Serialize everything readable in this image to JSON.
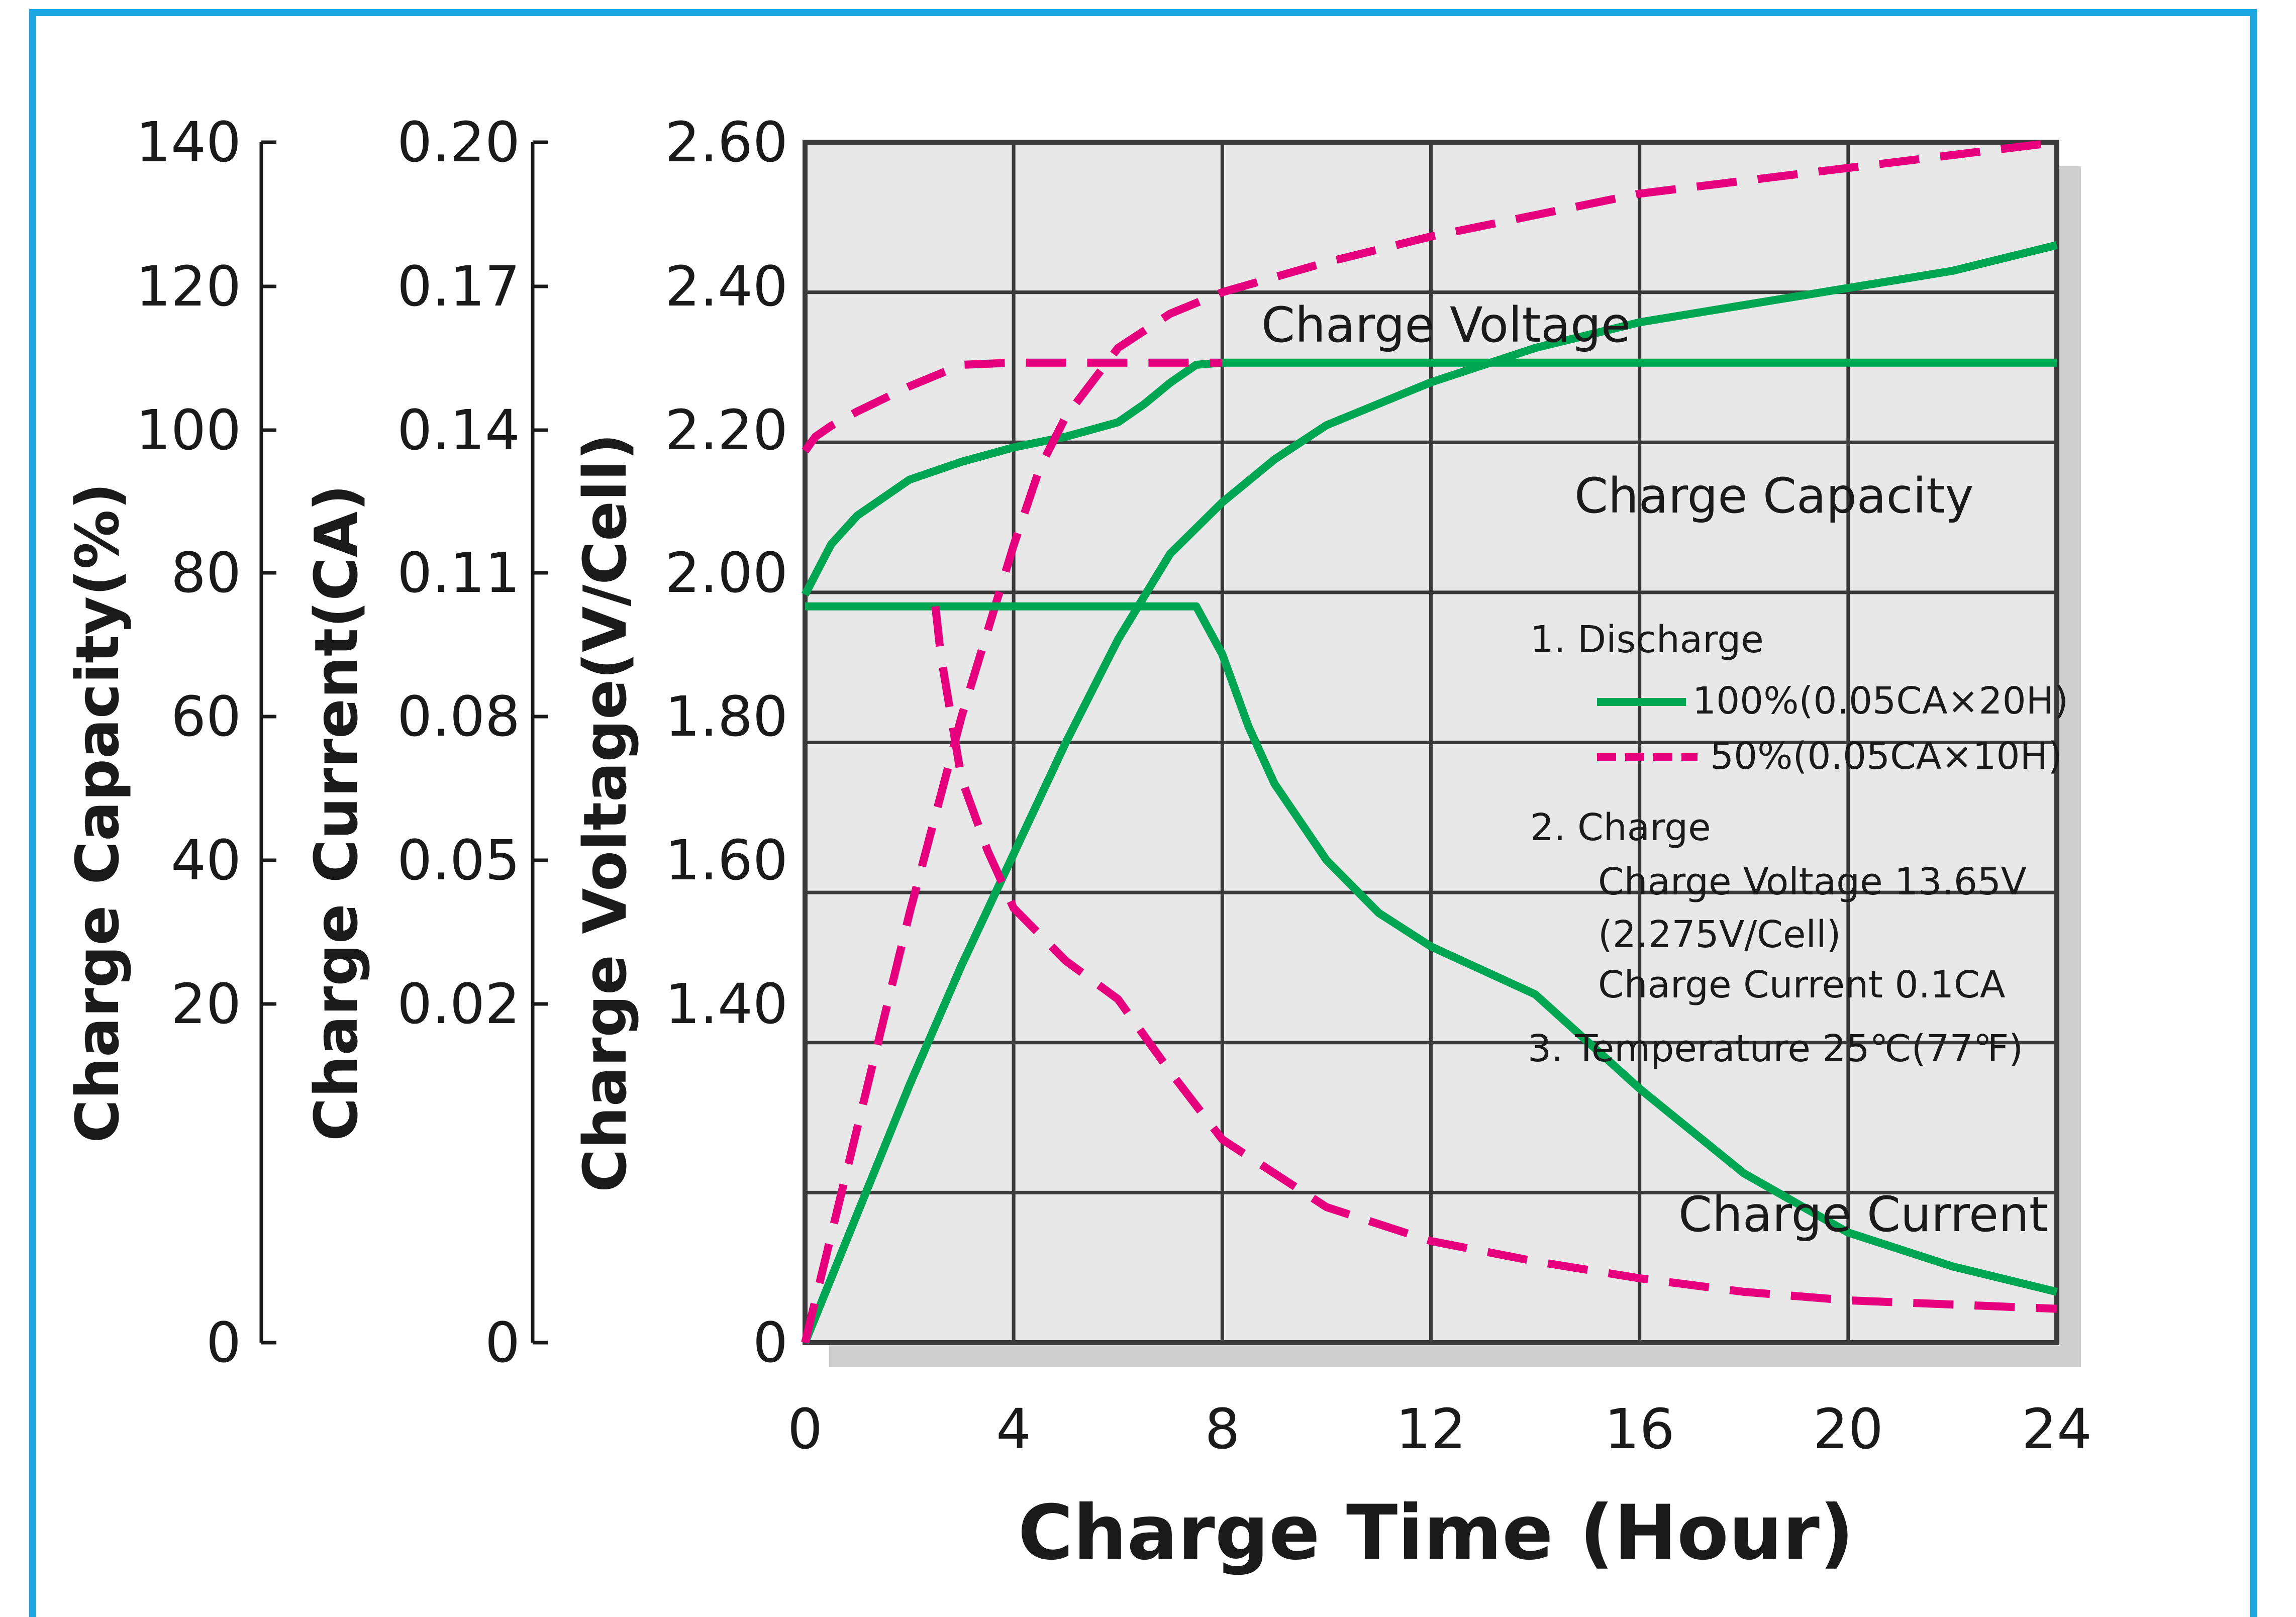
{
  "chart_data": {
    "type": "line",
    "xlabel": "Charge Time (Hour)",
    "xlim": [
      0,
      24
    ],
    "x_ticks": [
      "0",
      "4",
      "8",
      "12",
      "16",
      "20",
      "24"
    ],
    "grid": true,
    "y_axes": [
      {
        "label": "Charge Capacity(%)",
        "ticks": [
          "0",
          "20",
          "40",
          "60",
          "80",
          "100",
          "120",
          "140"
        ]
      },
      {
        "label": "Charge Current(CA)",
        "ticks": [
          "0",
          "0.02",
          "0.05",
          "0.08",
          "0.11",
          "0.14",
          "0.17",
          "0.20"
        ]
      },
      {
        "label": "Charge Voltage(V/Cell)",
        "ticks": [
          "0",
          "1.40",
          "1.60",
          "1.80",
          "2.00",
          "2.20",
          "2.40",
          "2.60"
        ]
      }
    ],
    "curve_labels": {
      "voltage": "Charge Voltage",
      "capacity": "Charge Capacity",
      "current": "Charge Current"
    },
    "series": [
      {
        "group": "voltage",
        "discharge": "100%",
        "style": "solid",
        "color": "#00a651",
        "axis": "voltage",
        "points": [
          [
            0,
            1.97
          ],
          [
            0.5,
            2.04
          ],
          [
            1,
            2.08
          ],
          [
            2,
            2.13
          ],
          [
            3,
            2.155
          ],
          [
            4,
            2.175
          ],
          [
            5,
            2.19
          ],
          [
            6,
            2.21
          ],
          [
            6.5,
            2.235
          ],
          [
            7,
            2.265
          ],
          [
            7.5,
            2.29
          ],
          [
            8,
            2.293
          ],
          [
            24,
            2.293
          ]
        ]
      },
      {
        "group": "voltage",
        "discharge": "50%",
        "style": "dashed",
        "color": "#e6007e",
        "axis": "voltage",
        "points": [
          [
            0,
            2.17
          ],
          [
            0.2,
            2.19
          ],
          [
            0.5,
            2.205
          ],
          [
            1,
            2.225
          ],
          [
            2,
            2.26
          ],
          [
            3,
            2.29
          ],
          [
            4,
            2.293
          ],
          [
            8,
            2.293
          ]
        ]
      },
      {
        "group": "capacity",
        "discharge": "100%",
        "style": "solid",
        "color": "#00a651",
        "axis": "capacity",
        "points": [
          [
            0,
            0
          ],
          [
            1,
            15
          ],
          [
            2,
            30
          ],
          [
            3,
            44
          ],
          [
            4,
            57
          ],
          [
            5,
            70
          ],
          [
            6,
            82
          ],
          [
            7,
            92
          ],
          [
            8,
            98
          ],
          [
            9,
            103
          ],
          [
            10,
            107
          ],
          [
            12,
            112
          ],
          [
            14,
            116
          ],
          [
            16,
            119
          ],
          [
            18,
            121
          ],
          [
            20,
            123
          ],
          [
            22,
            125
          ],
          [
            24,
            128
          ]
        ]
      },
      {
        "group": "capacity",
        "discharge": "50%",
        "style": "dashed",
        "color": "#e6007e",
        "axis": "capacity",
        "points": [
          [
            0,
            0
          ],
          [
            1,
            25
          ],
          [
            2,
            50
          ],
          [
            3,
            73
          ],
          [
            4,
            93
          ],
          [
            4.5,
            102
          ],
          [
            5,
            108
          ],
          [
            6,
            116
          ],
          [
            7,
            120
          ],
          [
            8,
            122.5
          ],
          [
            10,
            126
          ],
          [
            12,
            129
          ],
          [
            16,
            134
          ],
          [
            20,
            137
          ],
          [
            24,
            140
          ]
        ]
      },
      {
        "group": "current",
        "discharge": "100%",
        "style": "solid",
        "color": "#00a651",
        "axis": "current",
        "points": [
          [
            0,
            0.103
          ],
          [
            7.5,
            0.103
          ],
          [
            8,
            0.093
          ],
          [
            8.5,
            0.078
          ],
          [
            9,
            0.066
          ],
          [
            10,
            0.05
          ],
          [
            11,
            0.039
          ],
          [
            12,
            0.032
          ],
          [
            14,
            0.022
          ],
          [
            16,
            0.015
          ],
          [
            18,
            0.01
          ],
          [
            20,
            0.0065
          ],
          [
            22,
            0.0045
          ],
          [
            24,
            0.003
          ]
        ]
      },
      {
        "group": "current",
        "discharge": "50%",
        "style": "dashed",
        "color": "#e6007e",
        "axis": "current",
        "points": [
          [
            2.5,
            0.103
          ],
          [
            2.6,
            0.093
          ],
          [
            2.8,
            0.08
          ],
          [
            3,
            0.067
          ],
          [
            3.5,
            0.052
          ],
          [
            4,
            0.04
          ],
          [
            5,
            0.029
          ],
          [
            6,
            0.021
          ],
          [
            7,
            0.016
          ],
          [
            8,
            0.012
          ],
          [
            10,
            0.008
          ],
          [
            12,
            0.006
          ],
          [
            14,
            0.0048
          ],
          [
            16,
            0.0038
          ],
          [
            18,
            0.003
          ],
          [
            20,
            0.0025
          ],
          [
            24,
            0.002
          ]
        ]
      }
    ],
    "legend": {
      "items": [
        "1. Discharge",
        "100%(0.05CA×20H)",
        "50%(0.05CA×10H)",
        "2. Charge",
        "Charge Voltage 13.65V",
        "(2.275V/Cell)",
        "Charge Current 0.1CA",
        "3. Temperature 25℃(77℉)"
      ],
      "placement": "right"
    },
    "colors": {
      "grid": "#3a3a3a",
      "plot_bg": "#e9e8e9",
      "shadow": "#cfcfcf",
      "solid_series": "#00a651",
      "dashed_series": "#e6007e",
      "frame": "#1ea6e0"
    }
  }
}
